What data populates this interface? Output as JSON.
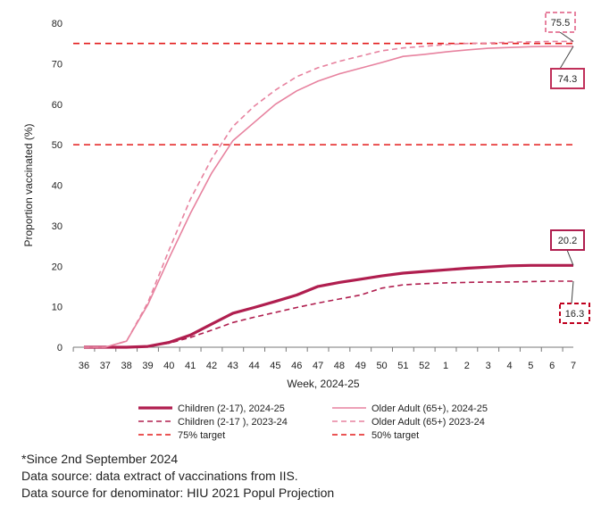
{
  "chart_data": {
    "type": "line",
    "xlabel": "Week, 2024-25",
    "ylabel": "Proportion vaccinated (%)",
    "ylim": [
      0,
      80
    ],
    "yticks": [
      0,
      10,
      20,
      30,
      40,
      50,
      60,
      70,
      80
    ],
    "categories": [
      "36",
      "37",
      "38",
      "39",
      "40",
      "41",
      "42",
      "43",
      "44",
      "45",
      "46",
      "47",
      "48",
      "49",
      "50",
      "51",
      "52",
      "1",
      "2",
      "3",
      "4",
      "5",
      "6",
      "7"
    ],
    "grid": false,
    "legend_position": "bottom",
    "series": [
      {
        "name": "Children (2-17), 2024-25",
        "color": "#b01e4f",
        "style": "solid",
        "width": 3.2,
        "values": [
          0,
          0,
          0,
          0.2,
          1.2,
          3,
          5.7,
          8.4,
          9.8,
          11.3,
          12.9,
          15,
          16,
          16.8,
          17.6,
          18.3,
          18.7,
          19.1,
          19.5,
          19.8,
          20.1,
          20.2,
          20.2,
          20.2
        ]
      },
      {
        "name": "Children (2-17 ), 2023-24",
        "color": "#b01e4f",
        "style": "dashed",
        "width": 1.6,
        "values": [
          0,
          0,
          0,
          0.2,
          1,
          2.4,
          4.2,
          6.1,
          7.4,
          8.6,
          9.8,
          10.9,
          11.9,
          12.9,
          14.6,
          15.4,
          15.7,
          15.9,
          16,
          16.1,
          16.1,
          16.2,
          16.3,
          16.3
        ]
      },
      {
        "name": "Older Adult (65+), 2024-25",
        "color": "#e7829f",
        "style": "solid",
        "width": 1.6,
        "values": [
          0,
          0,
          1.5,
          10.5,
          22,
          33,
          43,
          51,
          55.5,
          60,
          63.3,
          65.7,
          67.5,
          68.9,
          70.3,
          71.8,
          72.3,
          72.9,
          73.4,
          73.8,
          74,
          74.2,
          74.3,
          74.3
        ]
      },
      {
        "name": "Older Adult (65+) 2023-24",
        "color": "#e7829f",
        "style": "dashed",
        "width": 1.6,
        "values": [
          0,
          0,
          1.5,
          11,
          24,
          36.5,
          46.5,
          54.5,
          59.5,
          63.5,
          66.8,
          69,
          70.6,
          71.9,
          73.2,
          73.9,
          74.3,
          74.7,
          75,
          75.1,
          75.3,
          75.4,
          75.5,
          75.5
        ]
      }
    ],
    "targets": [
      {
        "name": "75% target",
        "value": 75,
        "color": "#e31b1b"
      },
      {
        "name": "50% target",
        "value": 50,
        "color": "#e31b1b"
      }
    ],
    "annotations": [
      {
        "text": "75.5",
        "series": "Older Adult (65+) 2023-24",
        "border_color": "#e7829f",
        "border_style": "dashed"
      },
      {
        "text": "74.3",
        "series": "Older Adult (65+), 2024-25",
        "border_color": "#c0305a",
        "border_style": "solid"
      },
      {
        "text": "20.2",
        "series": "Children (2-17), 2024-25",
        "border_color": "#b01e4f",
        "border_style": "solid"
      },
      {
        "text": "16.3",
        "series": "Children (2-17 ), 2023-24",
        "border_color": "#c0001e",
        "border_style": "dashed"
      }
    ]
  },
  "notes": [
    "*Since 2nd September 2024",
    "Data source: data extract of vaccinations from IIS.",
    "Data source for denominator: HIU 2021 Popul Projection"
  ]
}
